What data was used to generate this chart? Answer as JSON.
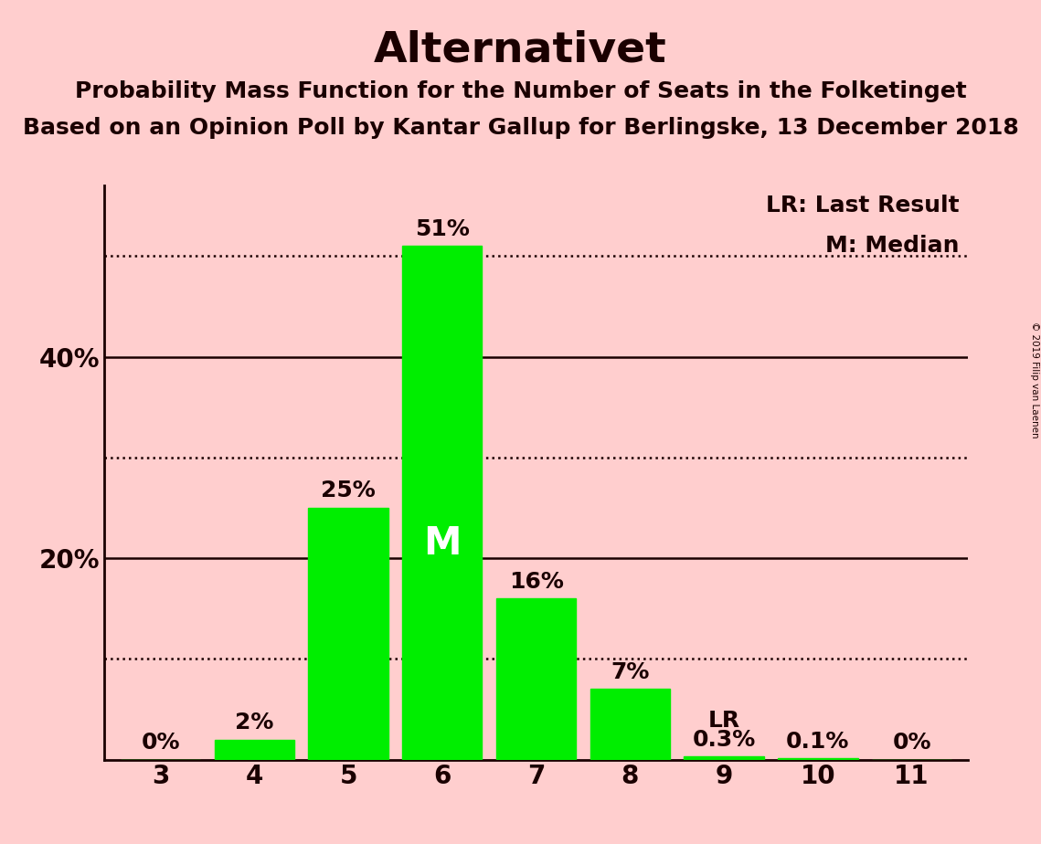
{
  "title": "Alternativet",
  "subtitle1": "Probability Mass Function for the Number of Seats in the Folketinget",
  "subtitle2": "Based on an Opinion Poll by Kantar Gallup for Berlingske, 13 December 2018",
  "copyright": "© 2019 Filip van Laenen",
  "categories": [
    3,
    4,
    5,
    6,
    7,
    8,
    9,
    10,
    11
  ],
  "values": [
    0,
    2,
    25,
    51,
    16,
    7,
    0.3,
    0.1,
    0
  ],
  "labels": [
    "0%",
    "2%",
    "25%",
    "51%",
    "16%",
    "7%",
    "0.3%",
    "0.1%",
    "0%"
  ],
  "bar_color": "#00ee00",
  "background_color": "#ffcece",
  "median_seat": 6,
  "median_label": "M",
  "lr_seat": 9,
  "lr_label": "LR",
  "legend_lr": "LR: Last Result",
  "legend_m": "M: Median",
  "ylim": [
    0,
    57
  ],
  "title_fontsize": 34,
  "subtitle_fontsize": 18,
  "label_fontsize": 18,
  "axis_fontsize": 20,
  "legend_fontsize": 18,
  "median_fontsize": 30,
  "spine_color": "#1a0000",
  "text_color": "#1a0000"
}
